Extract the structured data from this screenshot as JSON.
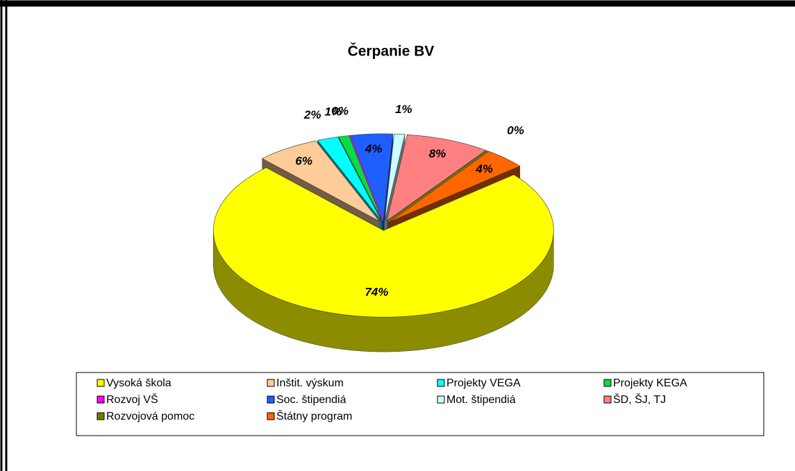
{
  "chart_data": {
    "type": "pie",
    "title": "Čerpanie BV",
    "categories": [
      "Vysoká škola",
      "Inštit. výskum",
      "Projekty VEGA",
      "Projekty KEGA",
      "Rozvoj VŠ",
      "Soc. štipendiá",
      "Mot. štipendiá",
      "ŠD, ŠJ, TJ",
      "Rozvojová pomoc",
      "Štátny program"
    ],
    "values": [
      74,
      6,
      2,
      1,
      0,
      4,
      1,
      8,
      0,
      4
    ],
    "value_labels": [
      "74%",
      "6%",
      "2%",
      "1%",
      "0%",
      "4%",
      "1%",
      "8%",
      "0%",
      "4%"
    ],
    "colors": [
      "#ffff00",
      "#ffcc99",
      "#00ffff",
      "#00e040",
      "#ff00ff",
      "#1f5fff",
      "#ccffff",
      "#ff8080",
      "#6b8000",
      "#ff6600"
    ],
    "legend": "bottom"
  }
}
